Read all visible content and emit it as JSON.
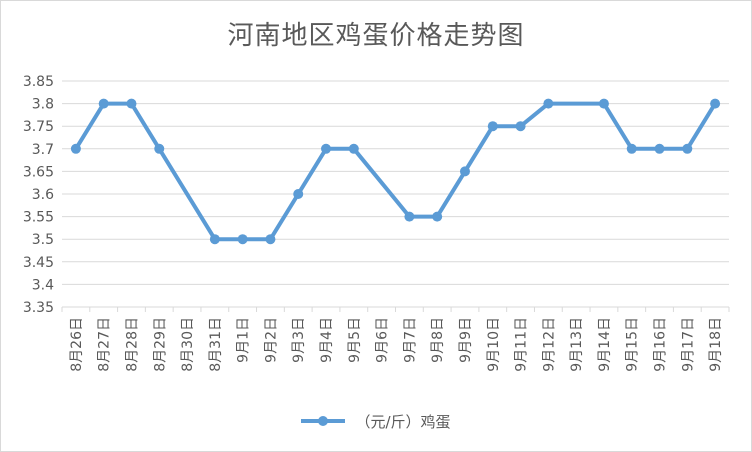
{
  "chart_data": {
    "type": "line",
    "title": "河南地区鸡蛋价格走势图",
    "categories": [
      "8月26日",
      "8月27日",
      "8月28日",
      "8月29日",
      "8月30日",
      "8月31日",
      "9月1日",
      "9月2日",
      "9月3日",
      "9月4日",
      "9月5日",
      "9月6日",
      "9月7日",
      "9月8日",
      "9月9日",
      "9月10日",
      "9月11日",
      "9月12日",
      "9月13日",
      "9月14日",
      "9月15日",
      "9月16日",
      "9月17日",
      "9月18日"
    ],
    "series": [
      {
        "name": "（元/斤）鸡蛋",
        "color": "#5b9bd5",
        "values": [
          3.7,
          3.8,
          3.8,
          3.7,
          null,
          3.5,
          3.5,
          3.5,
          3.6,
          3.7,
          3.7,
          null,
          3.55,
          3.55,
          3.65,
          3.75,
          3.75,
          3.8,
          null,
          3.8,
          3.7,
          3.7,
          3.7,
          3.8
        ]
      }
    ],
    "ylim": [
      3.35,
      3.85
    ],
    "yticks": [
      "3.35",
      "3.4",
      "3.45",
      "3.5",
      "3.55",
      "3.6",
      "3.65",
      "3.7",
      "3.75",
      "3.8",
      "3.85"
    ],
    "grid": true,
    "legend_position": "bottom",
    "gridline_color": "#d9d9d9"
  }
}
